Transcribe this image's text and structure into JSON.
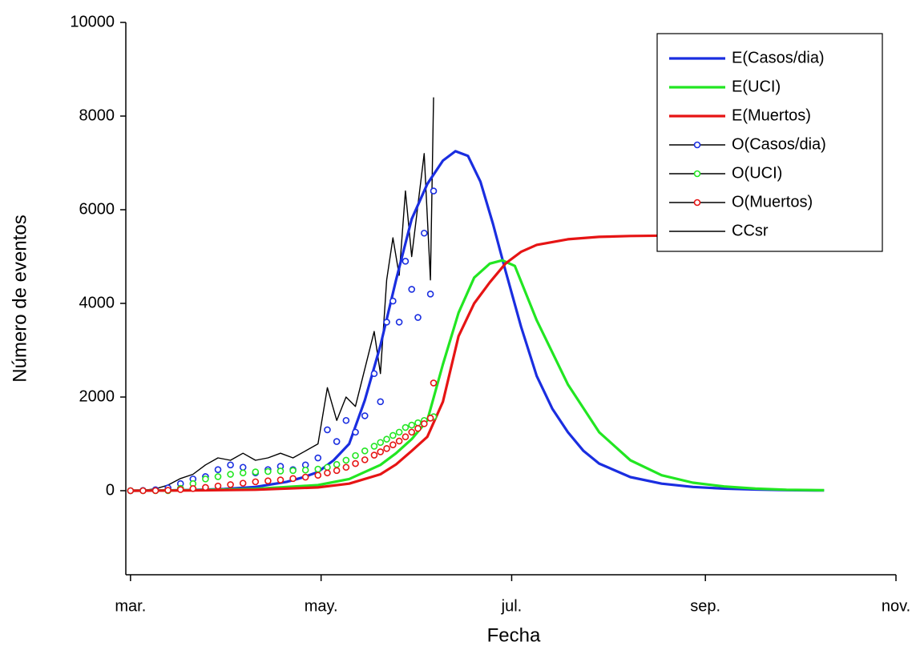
{
  "chart_data": {
    "type": "line",
    "x_label": "Fecha",
    "y_label": "Número de eventos",
    "xlim": [
      -1.5,
      245
    ],
    "xticks": [
      {
        "value": 0,
        "label": "mar."
      },
      {
        "value": 61,
        "label": "may."
      },
      {
        "value": 122,
        "label": "jul."
      },
      {
        "value": 184,
        "label": "sep."
      },
      {
        "value": 245,
        "label": "nov."
      }
    ],
    "ylim": [
      -1795,
      10000
    ],
    "yticks": [
      0,
      2000,
      4000,
      6000,
      8000,
      10000
    ],
    "legend": "upper right",
    "legend_line_color": "#000000",
    "series": [
      {
        "name": "E(Casos/dia)",
        "color": "#1a2ee0",
        "style": "line",
        "x": [
          0,
          10,
          20,
          30,
          40,
          50,
          55,
          60,
          65,
          70,
          75,
          80,
          85,
          90,
          95,
          100,
          104,
          108,
          112,
          116,
          120,
          125,
          130,
          135,
          140,
          145,
          150,
          160,
          170,
          180,
          190,
          200,
          210,
          222
        ],
        "values": [
          0,
          5,
          15,
          35,
          80,
          190,
          280,
          400,
          650,
          1000,
          1930,
          3100,
          4500,
          5800,
          6550,
          7050,
          7250,
          7150,
          6600,
          5700,
          4700,
          3500,
          2450,
          1750,
          1250,
          850,
          580,
          290,
          150,
          80,
          45,
          25,
          12,
          5
        ]
      },
      {
        "name": "E(UCI)",
        "color": "#22e622",
        "style": "line",
        "x": [
          0,
          20,
          40,
          60,
          70,
          80,
          85,
          90,
          95,
          100,
          105,
          110,
          115,
          119,
          123,
          130,
          140,
          150,
          160,
          170,
          180,
          190,
          200,
          210,
          222
        ],
        "values": [
          0,
          10,
          40,
          120,
          250,
          550,
          800,
          1100,
          1500,
          2700,
          3800,
          4550,
          4850,
          4920,
          4800,
          3640,
          2270,
          1250,
          650,
          330,
          170,
          90,
          45,
          20,
          10
        ]
      },
      {
        "name": "E(Muertos)",
        "color": "#e61414",
        "style": "line",
        "x": [
          0,
          20,
          40,
          60,
          70,
          80,
          85,
          90,
          95,
          100,
          105,
          110,
          115,
          120,
          125,
          130,
          140,
          150,
          160,
          175,
          200,
          222
        ],
        "values": [
          0,
          5,
          20,
          70,
          150,
          350,
          560,
          850,
          1150,
          1900,
          3300,
          4000,
          4450,
          4850,
          5100,
          5250,
          5370,
          5420,
          5440,
          5450,
          5450,
          5450
        ]
      },
      {
        "name": "O(Casos/dia)",
        "color": "#1a2ee0",
        "style": "markers",
        "x": [
          0,
          4,
          8,
          12,
          16,
          20,
          24,
          28,
          32,
          36,
          40,
          44,
          48,
          52,
          56,
          60,
          63,
          66,
          69,
          72,
          75,
          78,
          80,
          82,
          84,
          86,
          88,
          90,
          92,
          94,
          96,
          97
        ],
        "values": [
          0,
          5,
          20,
          60,
          150,
          250,
          300,
          450,
          550,
          500,
          380,
          450,
          520,
          450,
          550,
          700,
          1300,
          1050,
          1500,
          1250,
          1600,
          2500,
          1900,
          3600,
          4050,
          3600,
          4900,
          4300,
          3700,
          5500,
          4200,
          6400
        ]
      },
      {
        "name": "O(UCI)",
        "color": "#22e622",
        "style": "markers",
        "x": [
          0,
          4,
          8,
          12,
          16,
          20,
          24,
          28,
          32,
          36,
          40,
          44,
          48,
          52,
          56,
          60,
          63,
          66,
          69,
          72,
          75,
          78,
          80,
          82,
          84,
          86,
          88,
          90,
          92,
          94,
          96,
          97
        ],
        "values": [
          0,
          0,
          0,
          0,
          50,
          150,
          250,
          300,
          350,
          380,
          400,
          410,
          420,
          430,
          440,
          460,
          500,
          560,
          650,
          750,
          850,
          950,
          1030,
          1100,
          1180,
          1250,
          1350,
          1400,
          1450,
          1500,
          1550,
          1580
        ]
      },
      {
        "name": "O(Muertos)",
        "color": "#e61414",
        "style": "markers",
        "x": [
          0,
          4,
          8,
          12,
          16,
          20,
          24,
          28,
          32,
          36,
          40,
          44,
          48,
          52,
          56,
          60,
          63,
          66,
          69,
          72,
          75,
          78,
          80,
          82,
          84,
          86,
          88,
          90,
          92,
          94,
          96,
          97
        ],
        "values": [
          0,
          0,
          2,
          10,
          25,
          45,
          70,
          100,
          130,
          160,
          190,
          210,
          230,
          260,
          290,
          330,
          380,
          430,
          500,
          580,
          660,
          760,
          830,
          900,
          980,
          1060,
          1150,
          1250,
          1330,
          1430,
          1550,
          2300
        ]
      },
      {
        "name": "CCsr",
        "color": "#000000",
        "style": "thin",
        "x": [
          0,
          4,
          8,
          12,
          16,
          20,
          24,
          28,
          32,
          36,
          40,
          44,
          48,
          52,
          56,
          60,
          63,
          66,
          69,
          72,
          75,
          78,
          80,
          82,
          84,
          86,
          88,
          90,
          92,
          94,
          96,
          97
        ],
        "values": [
          0,
          10,
          40,
          120,
          260,
          350,
          550,
          700,
          650,
          800,
          650,
          700,
          800,
          700,
          850,
          1000,
          2200,
          1500,
          2000,
          1800,
          2600,
          3400,
          2500,
          4500,
          5400,
          4600,
          6400,
          5000,
          6100,
          7200,
          4500,
          8400
        ]
      }
    ]
  }
}
